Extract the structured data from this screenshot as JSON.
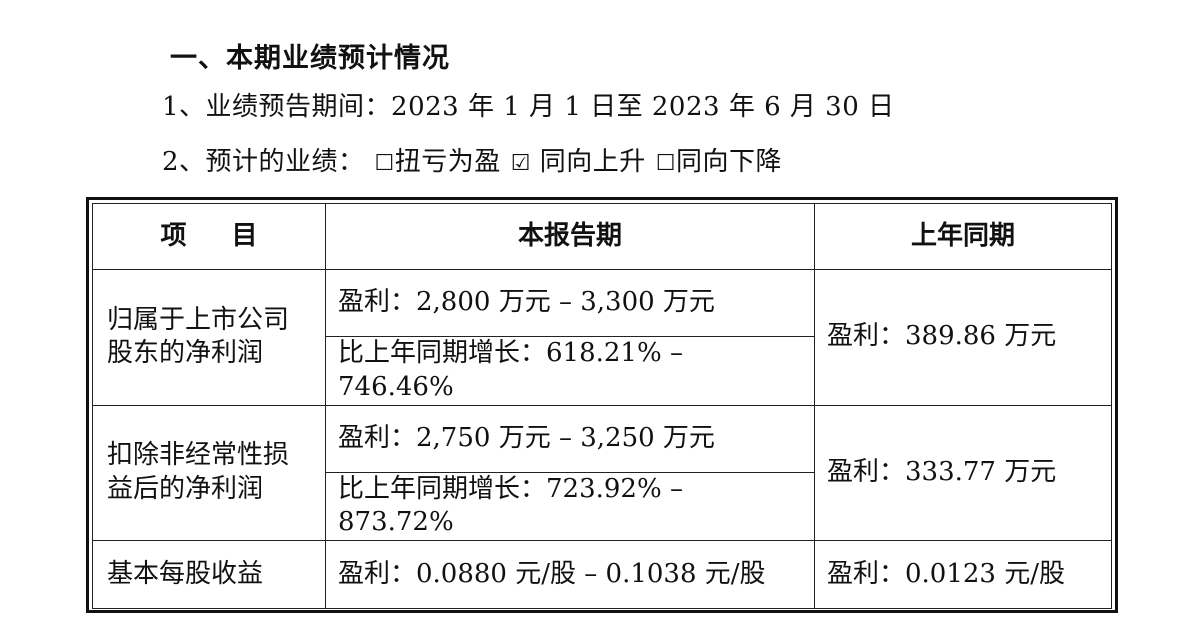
{
  "heading": "一、本期业绩预计情况",
  "forecast_period": {
    "label": "1、业绩预告期间：",
    "value": "2023 年 1 月 1 日至 2023 年 6 月 30 日"
  },
  "expected_performance": {
    "label": "2、预计的业绩：",
    "options": [
      {
        "box": "☐",
        "label": "扭亏为盈",
        "checked": false
      },
      {
        "box": "☑",
        "label": " 同向上升",
        "checked": true
      },
      {
        "box": "☐",
        "label": "同向下降",
        "checked": false
      }
    ]
  },
  "table": {
    "headers": [
      "项 目",
      "本报告期",
      "上年同期"
    ],
    "rows": [
      {
        "item": "归属于上市公司股东的净利润",
        "current": [
          "盈利：2,800 万元 – 3,300 万元",
          "比上年同期增长：618.21% – 746.46%"
        ],
        "prior": "盈利：389.86 万元"
      },
      {
        "item": "扣除非经常性损益后的净利润",
        "current": [
          "盈利：2,750 万元 – 3,250 万元",
          "比上年同期增长：723.92% – 873.72%"
        ],
        "prior": "盈利：333.77 万元"
      },
      {
        "item": "基本每股收益",
        "current": [
          "盈利：0.0880 元/股 – 0.1038 元/股"
        ],
        "prior": "盈利：0.0123 元/股"
      }
    ]
  }
}
